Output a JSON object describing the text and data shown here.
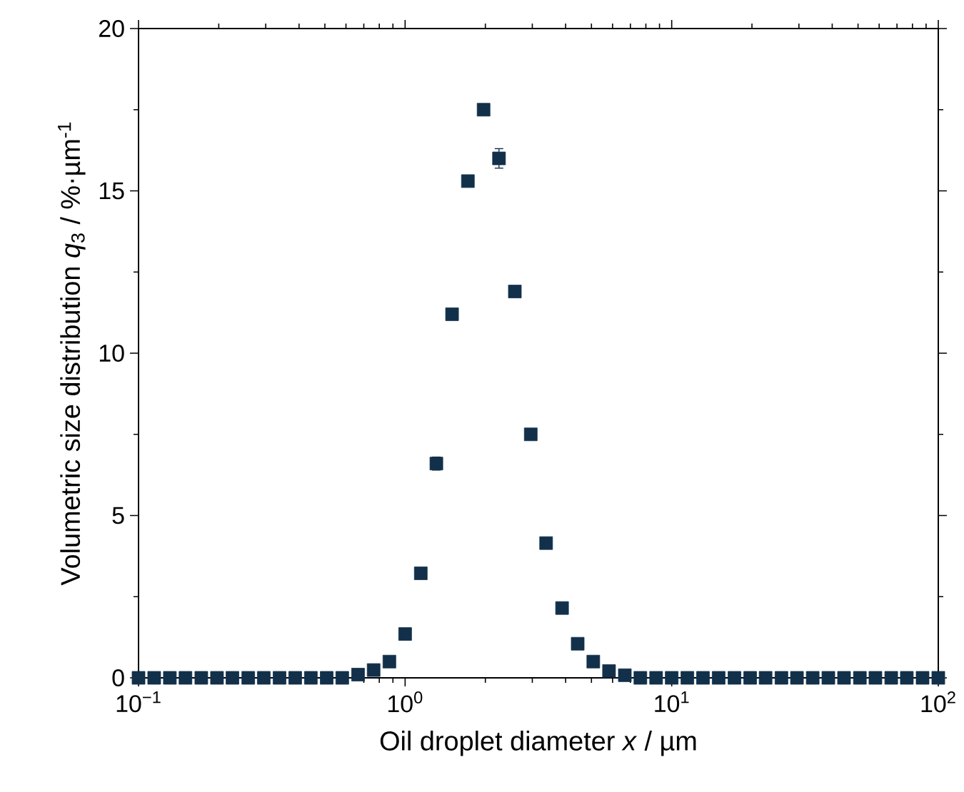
{
  "chart_data": {
    "type": "scatter",
    "xlabel": "Oil droplet diameter *x* / µm",
    "ylabel": "Volumetric size distribution *q*$_{3}$ / %·µm$^{-1}$",
    "log": "x",
    "xlim": [
      0.1,
      100
    ],
    "xticks": [
      {
        "value": 0.1,
        "label": "10$^{−1}$"
      },
      {
        "value": 1,
        "label": "10$^{0}$"
      },
      {
        "value": 10,
        "label": "10$^{1}$"
      },
      {
        "value": 100,
        "label": "10$^{2}$"
      },
      {
        "value": 0.2,
        "label": null
      },
      {
        "value": 0.3,
        "label": null
      },
      {
        "value": 0.4,
        "label": null
      },
      {
        "value": 0.5,
        "label": null
      },
      {
        "value": 0.6,
        "label": null
      },
      {
        "value": 0.7,
        "label": null
      },
      {
        "value": 0.8,
        "label": null
      },
      {
        "value": 0.9,
        "label": null
      },
      {
        "value": 2,
        "label": null
      },
      {
        "value": 3,
        "label": null
      },
      {
        "value": 4,
        "label": null
      },
      {
        "value": 5,
        "label": null
      },
      {
        "value": 6,
        "label": null
      },
      {
        "value": 7,
        "label": null
      },
      {
        "value": 8,
        "label": null
      },
      {
        "value": 9,
        "label": null
      },
      {
        "value": 20,
        "label": null
      },
      {
        "value": 30,
        "label": null
      },
      {
        "value": 40,
        "label": null
      },
      {
        "value": 50,
        "label": null
      },
      {
        "value": 60,
        "label": null
      },
      {
        "value": 70,
        "label": null
      },
      {
        "value": 80,
        "label": null
      },
      {
        "value": 90,
        "label": null
      }
    ],
    "ylim": [
      0,
      20
    ],
    "yticks": [
      0,
      5,
      10,
      15,
      20
    ],
    "marker": "square",
    "series": [
      {
        "color": "#12304a",
        "x": [
          0.1,
          0.1145,
          0.1311,
          0.15,
          0.172,
          0.197,
          0.225,
          0.258,
          0.295,
          0.338,
          0.387,
          0.443,
          0.508,
          0.581,
          0.666,
          0.762,
          0.873,
          1.0,
          1.145,
          1.31,
          1.5,
          1.72,
          1.97,
          2.25,
          2.58,
          2.96,
          3.38,
          3.88,
          4.44,
          5.08,
          5.82,
          6.67,
          7.63,
          8.74,
          10.0,
          11.45,
          13.1,
          15.0,
          17.2,
          19.7,
          22.5,
          25.8,
          29.5,
          33.8,
          38.7,
          44.3,
          50.8,
          58.1,
          66.6,
          76.2,
          87.3,
          100
        ],
        "values": [
          0,
          0,
          0,
          0,
          0,
          0,
          0,
          0,
          0,
          0,
          0,
          0,
          0,
          0,
          0.1,
          0.24,
          0.5,
          1.35,
          3.22,
          6.6,
          11.2,
          15.3,
          17.5,
          16.0,
          11.9,
          7.5,
          4.15,
          2.15,
          1.05,
          0.5,
          0.21,
          0.08,
          0,
          0,
          0,
          0,
          0,
          0,
          0,
          0,
          0,
          0,
          0,
          0,
          0,
          0,
          0,
          0,
          0,
          0,
          0,
          0
        ],
        "errors": [
          null,
          null,
          null,
          null,
          null,
          null,
          null,
          null,
          null,
          null,
          null,
          null,
          null,
          null,
          null,
          null,
          null,
          null,
          null,
          0.2,
          null,
          0.15,
          0.15,
          0.3,
          0.15,
          null,
          null,
          null,
          null,
          null,
          null,
          null,
          null,
          null,
          null,
          null,
          null,
          null,
          null,
          null,
          null,
          null,
          null,
          null,
          null,
          null,
          null,
          null,
          null,
          null,
          null,
          null
        ]
      }
    ]
  }
}
